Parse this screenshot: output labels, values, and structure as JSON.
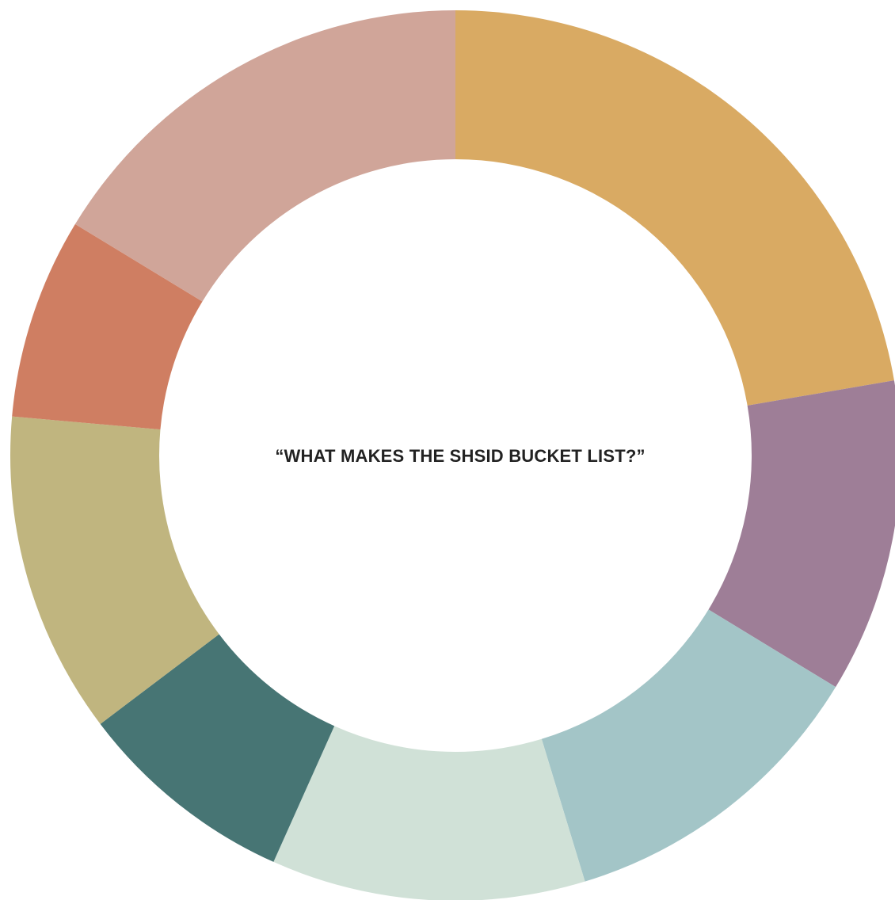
{
  "chart_data": {
    "type": "pie",
    "title": "“WHAT MAKES THE SHSID BUCKET LIST?”",
    "values": [
      22.3,
      11.4,
      11.6,
      11.4,
      8.0,
      11.7,
      7.3,
      16.3
    ],
    "colors": [
      "#d9aa63",
      "#9e7e97",
      "#a3c5c7",
      "#d0e1d7",
      "#477574",
      "#c0b57f",
      "#cf7e62",
      "#d0a599"
    ],
    "grid": false,
    "legend": "none"
  }
}
